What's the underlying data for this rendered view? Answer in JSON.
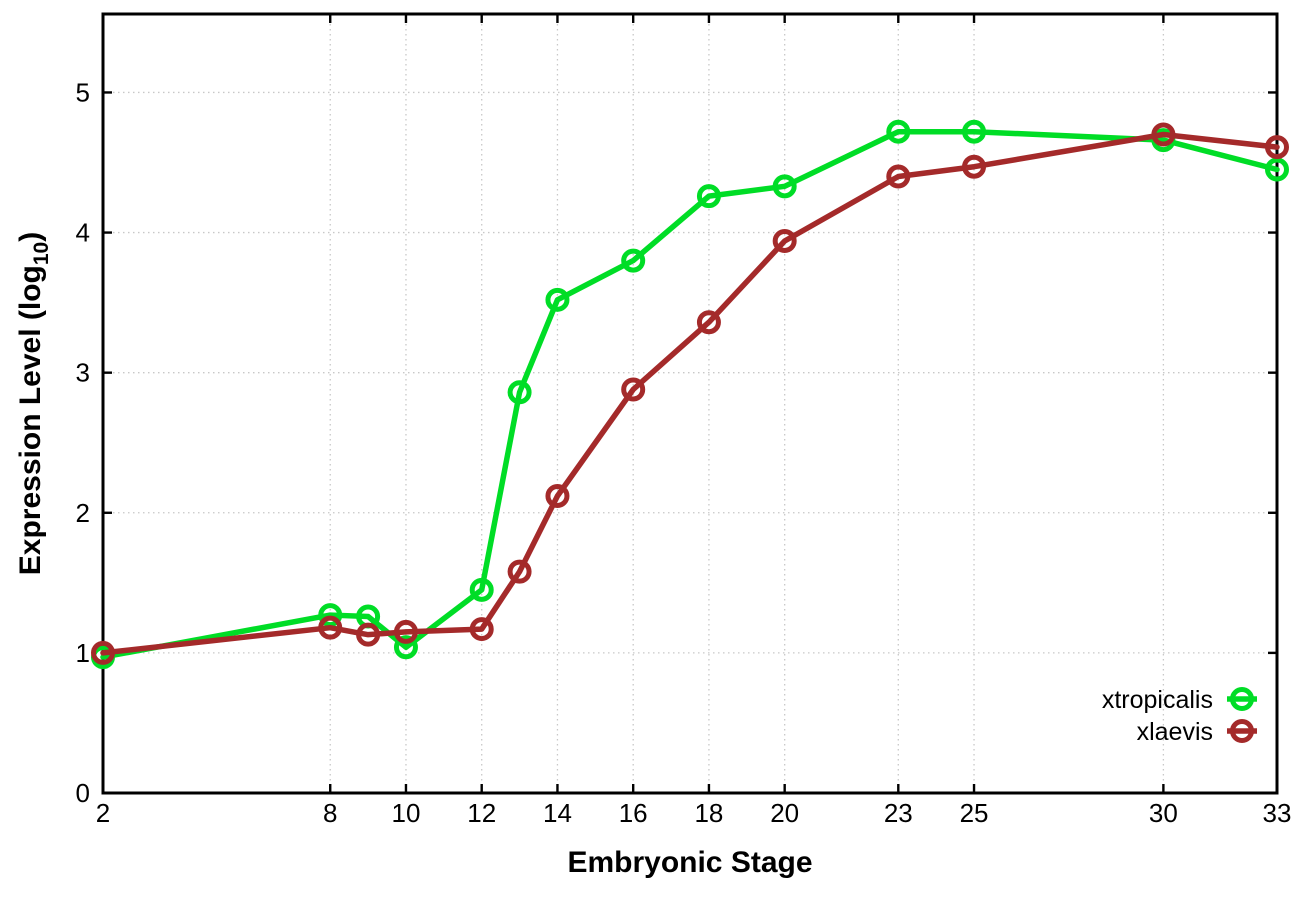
{
  "chart_data": {
    "type": "line",
    "title": "",
    "xlabel": "Embryonic Stage",
    "ylabel": "Expression Level (log10)",
    "ylabel_parts": {
      "main": "Expression Level (log",
      "sub": "10",
      "end": ")"
    },
    "x": [
      2,
      8,
      9,
      10,
      12,
      13,
      14,
      16,
      18,
      20,
      23,
      25,
      30,
      33
    ],
    "xticks": [
      2,
      8,
      10,
      12,
      14,
      16,
      18,
      20,
      23,
      25,
      30,
      33
    ],
    "yticks": [
      0,
      1,
      2,
      3,
      4,
      5
    ],
    "xlim": [
      2,
      33
    ],
    "ylim": [
      0,
      5.56
    ],
    "grid": true,
    "grid_style": "dotted",
    "legend_position": "bottom-right",
    "series": [
      {
        "name": "xtropicalis",
        "color": "#00dd26",
        "marker": "open-circle",
        "values": [
          0.97,
          1.27,
          1.26,
          1.04,
          1.45,
          2.86,
          3.52,
          3.8,
          4.26,
          4.33,
          4.72,
          4.72,
          4.66,
          4.45
        ]
      },
      {
        "name": "xlaevis",
        "color": "#a42a2a",
        "marker": "open-circle",
        "values": [
          1.0,
          1.18,
          1.13,
          1.15,
          1.17,
          1.58,
          2.12,
          2.88,
          3.36,
          3.94,
          4.4,
          4.47,
          4.7,
          4.61
        ]
      }
    ],
    "colors": {
      "background": "#ffffff",
      "axis": "#000000",
      "grid": "#c8c8c8",
      "text": "#000000"
    }
  }
}
